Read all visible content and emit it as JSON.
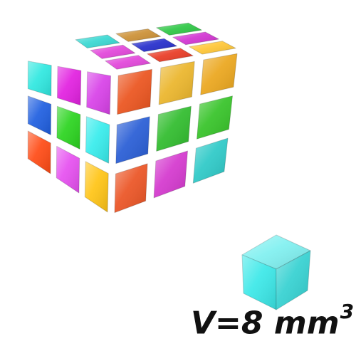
{
  "caption": {
    "prefix": "V=8 mm",
    "exponent": "3"
  },
  "big_cube": {
    "grid": "3x3x3",
    "top_face": [
      [
        "#2ed6d0",
        "#c98a2a",
        "#22c43a"
      ],
      [
        "#e03bd8",
        "#1a22c8",
        "#d028d0"
      ],
      [
        "#e03bd8",
        "#e83018",
        "#ffc32a"
      ]
    ],
    "front_face": [
      [
        "#2ee8e0",
        "#e21fe0",
        "#d840e8"
      ],
      [
        "#1e5ee0",
        "#2ad41e",
        "#36ecec"
      ],
      [
        "#ff4a14",
        "#e64ff0",
        "#ffc414"
      ]
    ],
    "right_face": [
      [
        "#ff5a20",
        "#ffc52e",
        "#ffb41e"
      ],
      [
        "#2a64e8",
        "#33cc30",
        "#3ad42a"
      ],
      [
        "#ff5a26",
        "#e63ce0",
        "#30dad8"
      ]
    ]
  },
  "small_cube": {
    "color": "#3ae8e8"
  }
}
